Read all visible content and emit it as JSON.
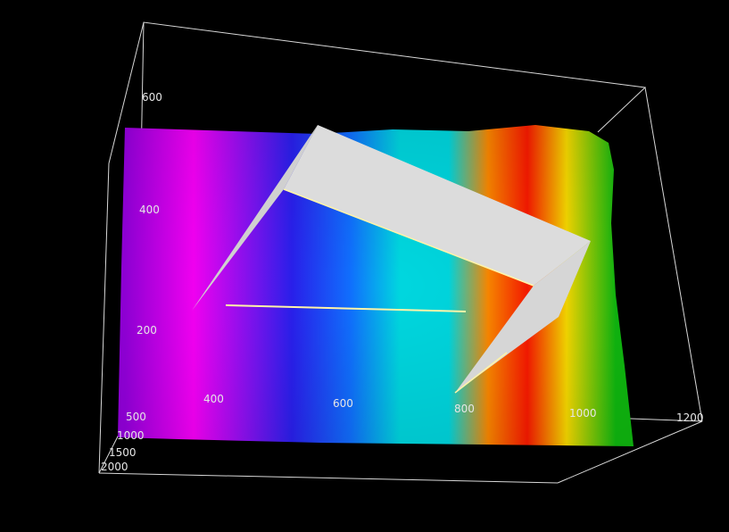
{
  "chart_data": {
    "type": "surface3d",
    "title": "",
    "x_axis": {
      "label": "",
      "ticks": [
        "400",
        "600",
        "800",
        "1000",
        "1200"
      ],
      "range": [
        300,
        1200
      ]
    },
    "y_axis": {
      "label": "",
      "ticks": [
        "500",
        "1000",
        "1500",
        "2000"
      ],
      "range": [
        0,
        2000
      ]
    },
    "z_axis": {
      "label": "",
      "ticks": [
        "200",
        "400",
        "600"
      ],
      "range": [
        0,
        700
      ]
    },
    "colormap": [
      "#b000e6",
      "#ff00ff",
      "#2020ff",
      "#00e0e0",
      "#00e0e0",
      "#ff8000",
      "#ff0000",
      "#ffff00",
      "#00c000"
    ],
    "overlay_colors": {
      "panel": "#dcdcdc",
      "line": "#fff4a8"
    }
  }
}
